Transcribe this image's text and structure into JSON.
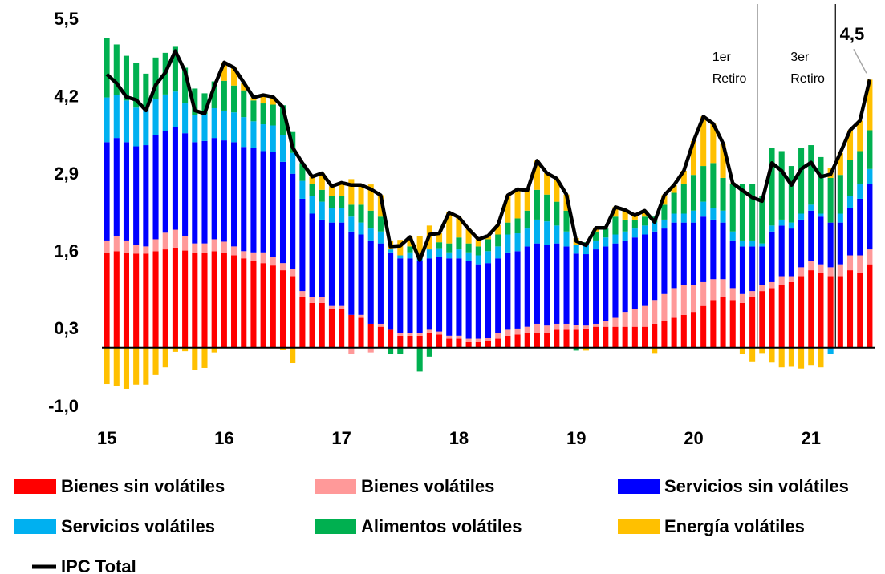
{
  "chart_data": {
    "type": "bar",
    "categories": [
      "15",
      null,
      null,
      null,
      null,
      null,
      null,
      null,
      null,
      null,
      null,
      null,
      "16",
      null,
      null,
      null,
      null,
      null,
      null,
      null,
      null,
      null,
      null,
      null,
      "17",
      null,
      null,
      null,
      null,
      null,
      null,
      null,
      null,
      null,
      null,
      null,
      "18",
      null,
      null,
      null,
      null,
      null,
      null,
      null,
      null,
      null,
      null,
      null,
      "19",
      null,
      null,
      null,
      null,
      null,
      null,
      null,
      null,
      null,
      null,
      null,
      "20",
      null,
      null,
      null,
      null,
      null,
      null,
      null,
      null,
      null,
      null,
      null,
      "21",
      null,
      null,
      null,
      null,
      null,
      null
    ],
    "ylim": [
      -1.0,
      5.5
    ],
    "yticks": [
      {
        "value": -1.0,
        "label": "-1,0"
      },
      {
        "value": 0.3,
        "label": "0,3"
      },
      {
        "value": 1.6,
        "label": "1,6"
      },
      {
        "value": 2.9,
        "label": "2,9"
      },
      {
        "value": 4.2,
        "label": "4,2"
      },
      {
        "value": 5.5,
        "label": "5,5"
      }
    ],
    "grid": false,
    "series": [
      {
        "name": "Bienes sin volátiles",
        "color": "#ff0000",
        "values": [
          1.6,
          1.62,
          1.6,
          1.58,
          1.58,
          1.62,
          1.65,
          1.68,
          1.63,
          1.6,
          1.6,
          1.62,
          1.6,
          1.55,
          1.5,
          1.45,
          1.42,
          1.38,
          1.3,
          1.2,
          0.85,
          0.75,
          0.75,
          0.65,
          0.65,
          0.55,
          0.5,
          0.4,
          0.35,
          0.3,
          0.2,
          0.2,
          0.2,
          0.25,
          0.22,
          0.15,
          0.15,
          0.1,
          0.1,
          0.12,
          0.15,
          0.2,
          0.22,
          0.25,
          0.25,
          0.25,
          0.3,
          0.3,
          0.3,
          0.32,
          0.35,
          0.35,
          0.35,
          0.35,
          0.35,
          0.35,
          0.4,
          0.45,
          0.5,
          0.55,
          0.6,
          0.7,
          0.8,
          0.85,
          0.8,
          0.75,
          0.85,
          0.95,
          1.0,
          1.05,
          1.1,
          1.2,
          1.3,
          1.25,
          1.2,
          1.2,
          1.3,
          1.25,
          1.4
        ]
      },
      {
        "name": "Bienes volátiles",
        "color": "#ff9999",
        "values": [
          0.2,
          0.25,
          0.2,
          0.15,
          0.12,
          0.2,
          0.28,
          0.3,
          0.25,
          0.15,
          0.15,
          0.2,
          0.18,
          0.15,
          0.12,
          0.15,
          0.18,
          0.15,
          0.12,
          0.12,
          0.1,
          0.1,
          0.1,
          0.05,
          0.05,
          -0.1,
          0.05,
          -0.08,
          0.05,
          0.0,
          0.05,
          0.05,
          0.05,
          0.05,
          0.05,
          0.05,
          0.05,
          0.05,
          0.05,
          0.05,
          0.1,
          0.1,
          0.1,
          0.1,
          0.15,
          0.12,
          0.1,
          0.1,
          0.08,
          0.05,
          0.05,
          0.1,
          0.15,
          0.25,
          0.3,
          0.35,
          0.4,
          0.45,
          0.5,
          0.5,
          0.45,
          0.4,
          0.35,
          0.3,
          0.2,
          0.15,
          0.1,
          0.1,
          0.1,
          0.15,
          0.1,
          0.15,
          0.15,
          0.15,
          0.15,
          0.2,
          0.25,
          0.3,
          0.25
        ]
      },
      {
        "name": "Servicios sin volátiles",
        "color": "#0000ff",
        "values": [
          1.65,
          1.65,
          1.65,
          1.65,
          1.7,
          1.75,
          1.7,
          1.72,
          1.72,
          1.7,
          1.72,
          1.7,
          1.7,
          1.75,
          1.75,
          1.75,
          1.7,
          1.75,
          1.7,
          1.6,
          1.55,
          1.4,
          1.3,
          1.4,
          1.4,
          1.4,
          1.35,
          1.4,
          1.35,
          1.3,
          1.25,
          1.25,
          1.2,
          1.2,
          1.25,
          1.3,
          1.3,
          1.3,
          1.25,
          1.25,
          1.25,
          1.3,
          1.3,
          1.35,
          1.35,
          1.35,
          1.35,
          1.3,
          1.2,
          1.2,
          1.25,
          1.25,
          1.25,
          1.2,
          1.2,
          1.2,
          1.15,
          1.1,
          1.1,
          1.05,
          1.05,
          1.1,
          1.0,
          0.95,
          0.8,
          0.8,
          0.75,
          0.65,
          0.85,
          0.85,
          0.8,
          0.8,
          0.85,
          0.8,
          0.75,
          0.7,
          0.8,
          0.95,
          1.1
        ]
      },
      {
        "name": "Servicios volátiles",
        "color": "#00b0f0",
        "values": [
          0.75,
          0.72,
          0.7,
          0.65,
          0.6,
          0.6,
          0.62,
          0.6,
          0.5,
          0.45,
          0.45,
          0.5,
          0.5,
          0.5,
          0.5,
          0.45,
          0.45,
          0.45,
          0.45,
          0.35,
          0.3,
          0.3,
          0.3,
          0.25,
          0.25,
          0.25,
          0.2,
          0.2,
          0.2,
          0.05,
          0.05,
          0.1,
          0.1,
          0.15,
          0.15,
          0.1,
          0.15,
          0.15,
          0.15,
          0.2,
          0.2,
          0.3,
          0.3,
          0.3,
          0.4,
          0.4,
          0.3,
          0.25,
          0.15,
          0.15,
          0.15,
          0.15,
          0.15,
          0.15,
          0.15,
          0.15,
          0.15,
          0.15,
          0.15,
          0.15,
          0.2,
          0.25,
          0.2,
          0.2,
          0.15,
          0.1,
          0.1,
          0.05,
          0.1,
          0.1,
          0.1,
          0.1,
          0.1,
          0.05,
          -0.1,
          0.15,
          0.2,
          0.25,
          0.25
        ]
      },
      {
        "name": "Alimentos volátiles",
        "color": "#00b050",
        "values": [
          1.0,
          0.85,
          0.75,
          0.75,
          0.6,
          0.7,
          0.7,
          0.75,
          0.6,
          0.45,
          0.35,
          0.45,
          0.5,
          0.45,
          0.45,
          0.35,
          0.35,
          0.35,
          0.5,
          0.35,
          0.3,
          0.2,
          0.2,
          0.2,
          0.2,
          0.2,
          0.3,
          0.3,
          0.25,
          -0.1,
          -0.1,
          0.1,
          -0.4,
          -0.15,
          0.1,
          0.15,
          0.2,
          0.15,
          0.15,
          0.2,
          0.2,
          0.2,
          0.25,
          0.3,
          0.5,
          0.45,
          0.4,
          0.35,
          -0.05,
          0.05,
          0.15,
          0.15,
          0.3,
          0.2,
          0.15,
          0.15,
          0.1,
          0.25,
          0.35,
          0.5,
          0.6,
          0.6,
          0.75,
          0.55,
          0.8,
          0.95,
          0.95,
          0.8,
          1.3,
          1.15,
          0.95,
          1.1,
          1.0,
          0.95,
          0.75,
          0.65,
          0.6,
          0.55,
          0.65
        ]
      },
      {
        "name": "Energía volátiles",
        "color": "#ffc000",
        "values": [
          -0.61,
          -0.65,
          -0.69,
          -0.62,
          -0.62,
          -0.46,
          -0.33,
          -0.07,
          -0.06,
          -0.37,
          -0.34,
          -0.08,
          0.31,
          0.3,
          0.13,
          0.05,
          0.14,
          0.13,
          -0.03,
          -0.26,
          0.0,
          0.12,
          0.28,
          0.16,
          0.22,
          0.43,
          0.33,
          0.44,
          0.36,
          0.15,
          0.26,
          0.16,
          0.32,
          0.4,
          0.15,
          0.52,
          0.34,
          0.24,
          0.12,
          0.06,
          0.16,
          0.46,
          0.49,
          0.34,
          0.49,
          0.36,
          0.39,
          0.27,
          0.11,
          -0.05,
          0.06,
          0.01,
          0.16,
          0.16,
          0.07,
          0.1,
          -0.09,
          0.16,
          0.13,
          0.22,
          0.57,
          0.83,
          0.66,
          0.58,
          0.01,
          -0.11,
          -0.23,
          -0.09,
          -0.25,
          -0.33,
          -0.32,
          -0.35,
          -0.29,
          -0.33,
          0.16,
          0.37,
          0.5,
          0.51,
          0.85
        ]
      },
      {
        "name": "IPC Total",
        "color": "#000000",
        "type": "line",
        "values": [
          4.59,
          4.44,
          4.21,
          4.16,
          3.98,
          4.41,
          4.62,
          4.98,
          4.64,
          3.98,
          3.93,
          4.39,
          4.79,
          4.7,
          4.45,
          4.2,
          4.24,
          4.21,
          4.04,
          3.36,
          3.1,
          2.87,
          2.93,
          2.71,
          2.77,
          2.73,
          2.73,
          2.66,
          2.56,
          1.7,
          1.71,
          1.86,
          1.47,
          1.9,
          1.92,
          2.27,
          2.19,
          1.99,
          1.82,
          1.88,
          2.06,
          2.56,
          2.66,
          2.64,
          3.14,
          2.93,
          2.84,
          2.57,
          1.79,
          1.72,
          2.01,
          2.01,
          2.36,
          2.31,
          2.22,
          2.3,
          2.11,
          2.56,
          2.73,
          2.97,
          3.47,
          3.88,
          3.76,
          3.43,
          2.76,
          2.64,
          2.52,
          2.46,
          3.1,
          2.97,
          2.73,
          3.0,
          3.11,
          2.87,
          2.91,
          3.27,
          3.65,
          3.81,
          4.5
        ],
        "value_labels": [
          null,
          null,
          null,
          null,
          null,
          null,
          null,
          null,
          null,
          null,
          null,
          null,
          null,
          null,
          null,
          null,
          null,
          null,
          null,
          null,
          null,
          null,
          null,
          null,
          null,
          null,
          null,
          null,
          null,
          null,
          null,
          null,
          null,
          null,
          null,
          null,
          null,
          null,
          null,
          null,
          null,
          null,
          null,
          null,
          null,
          null,
          null,
          null,
          null,
          null,
          null,
          null,
          null,
          null,
          null,
          null,
          null,
          null,
          null,
          null,
          null,
          null,
          null,
          null,
          null,
          null,
          null,
          null,
          null,
          null,
          null,
          null,
          null,
          null,
          null,
          null,
          null,
          null,
          "4,5"
        ]
      }
    ],
    "annotations": [
      {
        "text": [
          "1er",
          "Retiro"
        ],
        "x": 66.5
      },
      {
        "text": [
          "3er",
          "Retiro"
        ],
        "x": 74.5
      }
    ]
  }
}
